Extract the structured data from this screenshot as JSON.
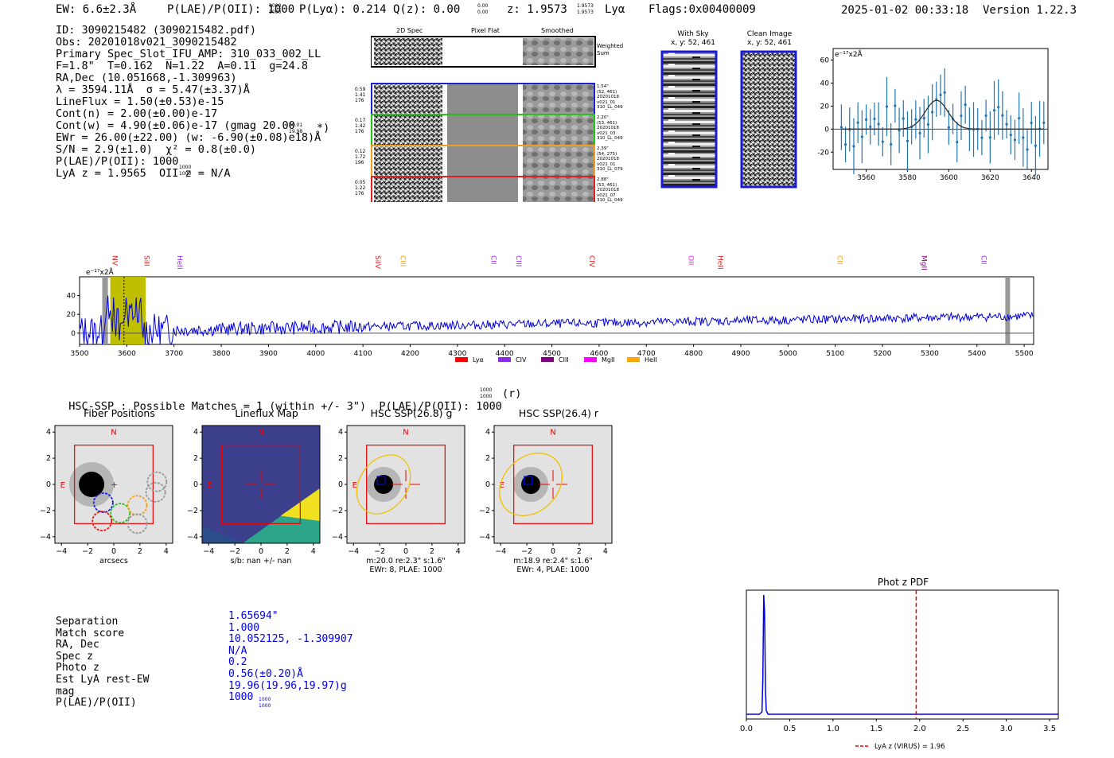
{
  "header": {
    "ew": "EW: 6.6±2.3Å",
    "plae": "P(LAE)/P(OII): 1000",
    "plae_sup": "1000",
    "plae_sub": "1000",
    "plya": "P(Lyα): 0.214",
    "qz": "Q(z): 0.00",
    "qz_sup": "0.00",
    "qz_sub": "0.00",
    "z": "z: 1.9573",
    "z_sup": "1.9573",
    "z_sub": "1.9573",
    "z_line": "Lyα",
    "flags": "Flags:0x00400009",
    "timestamp": "2025-01-02 00:33:18",
    "version": "Version 1.22.3"
  },
  "info": {
    "lines": [
      "ID: 3090215482 (3090215482.pdf)",
      "Obs: 20201018v021_3090215482",
      "Primary Spec_Slot_IFU_AMP: 310_033_002_LL",
      "F=1.8\"  T=0.162  N=1.22  A=0.11  g=24.8",
      "RA,Dec (10.051668,-1.309963)",
      "λ = 3594.11Å  σ = 5.47(±3.37)Å",
      "LineFlux = 1.50(±0.53)e-15",
      "Cont(n) = 2.00(±0.00)e-17",
      "Cont(w) = 4.90(±0.06)e-17 (gmag 20.00",
      "EWr = 26.00(±22.00) (w: -6.90(±0.08)e18)Å",
      "S/N = 2.9(±1.0)  χ² = 0.8(±0.0)",
      "P(LAE)/P(OII): 1000",
      "LyA z = 1.9565  OII z = N/A"
    ],
    "gmag_sup": "20.01",
    "gmag_sub": "19.98",
    "gmag_tail": "*)",
    "plae_sup": "1000",
    "plae_sub": "1000"
  },
  "cutouts": {
    "headers": [
      "2D Spec",
      "Pixel Flat",
      "Smoothed"
    ],
    "weighted_label": "Weighted Sum",
    "rows": [
      {
        "left": [
          "0.59",
          "1.41",
          "176"
        ],
        "right": [
          "1.54\"",
          "(52, 461)",
          "20201018",
          "v021_01",
          "310_LL_049"
        ],
        "color": "#1f1fd6"
      },
      {
        "left": [
          "0.17",
          "1.42",
          "176"
        ],
        "right": [
          "2.20\"",
          "(53, 461)",
          "20201018",
          "v021_03",
          "310_LL_049"
        ],
        "color": "#22c41a"
      },
      {
        "left": [
          "0.12",
          "1.72",
          "196"
        ],
        "right": [
          "2.39\"",
          "(54, 275)",
          "20201018",
          "v021_01",
          "310_LL_079"
        ],
        "color": "#f0a020"
      },
      {
        "left": [
          "0.05",
          "1.22",
          "176"
        ],
        "right": [
          "2.88\"",
          "(53, 461)",
          "20201018",
          "v021_07",
          "310_LL_049"
        ],
        "color": "#e02020"
      }
    ]
  },
  "sky": {
    "with_sky_title": "With Sky",
    "with_sky_coords": "x, y: 52, 461",
    "clean_title": "Clean Image",
    "clean_coords": "x, y: 52, 461"
  },
  "zoom_spec": {
    "unit_label": "e⁻¹⁷x2Å",
    "xticks": [
      "3560",
      "3580",
      "3600",
      "3620",
      "3640"
    ],
    "yticks": [
      "60",
      "40",
      "20",
      "0",
      "-20"
    ]
  },
  "full_spec": {
    "unit_label": "e⁻¹⁷x2Å",
    "xticks": [
      "3500",
      "3600",
      "3700",
      "3800",
      "3900",
      "4000",
      "4100",
      "4200",
      "4300",
      "4400",
      "4500",
      "4600",
      "4700",
      "4800",
      "4900",
      "5000",
      "5100",
      "5200",
      "5300",
      "5400",
      "5500"
    ],
    "yticks": [
      "40",
      "20",
      "0"
    ],
    "lines": [
      {
        "name": "NV",
        "wave": 3570,
        "color": "#e02020"
      },
      {
        "name": "SiII",
        "wave": 3637,
        "color": "#e02020"
      },
      {
        "name": "HeII",
        "wave": 3707,
        "color": "#9b30ff"
      },
      {
        "name": "SiIV",
        "wave": 4127,
        "color": "#e02020"
      },
      {
        "name": "CIII",
        "wave": 4180,
        "color": "#f0a020"
      },
      {
        "name": "CII",
        "wave": 4372,
        "color": "#9b30ff"
      },
      {
        "name": "CIII",
        "wave": 4425,
        "color": "#9b30ff"
      },
      {
        "name": "CIV",
        "wave": 4580,
        "color": "#e02020"
      },
      {
        "name": "OII",
        "wave": 4790,
        "color": "#ee22ee"
      },
      {
        "name": "HeII",
        "wave": 4852,
        "color": "#e02020"
      },
      {
        "name": "CII",
        "wave": 5105,
        "color": "#f0a020"
      },
      {
        "name": "MgII",
        "wave": 5283,
        "color": "#800080"
      },
      {
        "name": "CII",
        "wave": 5410,
        "color": "#9b30ff"
      }
    ],
    "legend": [
      {
        "name": "Lyα",
        "color": "#ff0000"
      },
      {
        "name": "CIV",
        "color": "#8a2be2"
      },
      {
        "name": "CIII",
        "color": "#800080"
      },
      {
        "name": "MgII",
        "color": "#ff00ff"
      },
      {
        "name": "HeII",
        "color": "#ffa500"
      }
    ]
  },
  "hsc": {
    "title": "HSC-SSP : Possible Matches = 1 (within +/- 3\")  P(LAE)/P(OII): 1000",
    "title_sup": "1000",
    "title_sub": "1000",
    "title_tail": "(r)",
    "panels": [
      {
        "title": "Fiber Positions",
        "xlabel": "arcsecs",
        "sub": ""
      },
      {
        "title": "Lineflux Map",
        "xlabel": "s/b: nan +/- nan",
        "sub": ""
      },
      {
        "title": "HSC SSP(26.8) g",
        "xlabel": "m:20.0  re:2.3\"  s:1.6\"",
        "sub": "EWr: 8, PLAE: 1000"
      },
      {
        "title": "HSC SSP(26.4) r",
        "xlabel": "m:18.9  re:2.4\"  s:1.6\"",
        "sub": "EWr: 4, PLAE: 1000"
      }
    ],
    "ticks": [
      "−4",
      "−2",
      "0",
      "2",
      "4"
    ],
    "yticks": [
      "4",
      "2",
      "0",
      "−2",
      "−4"
    ],
    "n_label": "N",
    "e_label": "E"
  },
  "match": {
    "labels": [
      "Separation",
      "Match score",
      "RA, Dec",
      "Spec z",
      "Photo z",
      "Est LyA rest-EW",
      "mag",
      "P(LAE)/P(OII)"
    ],
    "values": [
      "1.65694\"",
      "1.000",
      "10.052125, -1.309907",
      "N/A",
      "0.2",
      "0.56(±0.20)Å",
      "19.96(19.96,19.97)g",
      "1000"
    ],
    "plae_sup": "1000",
    "plae_sub": "1000"
  },
  "chart_data": [
    {
      "type": "line",
      "title": "Phot z PDF",
      "xlabel": "",
      "ylabel": "",
      "xlim": [
        0.0,
        3.6
      ],
      "xticks": [
        "0.0",
        "0.5",
        "1.0",
        "1.5",
        "2.0",
        "2.5",
        "3.0",
        "3.5"
      ],
      "x": [
        0.0,
        0.15,
        0.18,
        0.19,
        0.2,
        0.21,
        0.22,
        0.23,
        0.25,
        0.3,
        1.0,
        2.0,
        3.6
      ],
      "y": [
        0.0,
        0.0,
        0.02,
        0.3,
        1.0,
        0.85,
        0.2,
        0.03,
        0.0,
        0.0,
        0.0,
        0.0,
        0.0
      ],
      "vline": 1.96,
      "legend": "LyA z (VIRUS) = 1.96"
    },
    {
      "type": "scatter",
      "title": "",
      "xlabel": "",
      "ylabel": "e⁻¹⁷x2Å",
      "xlim": [
        3544,
        3648
      ],
      "ylim": [
        -35,
        70
      ],
      "fit_center": 3594.11,
      "fit_sigma": 5.47,
      "fit_amp": 25
    }
  ]
}
